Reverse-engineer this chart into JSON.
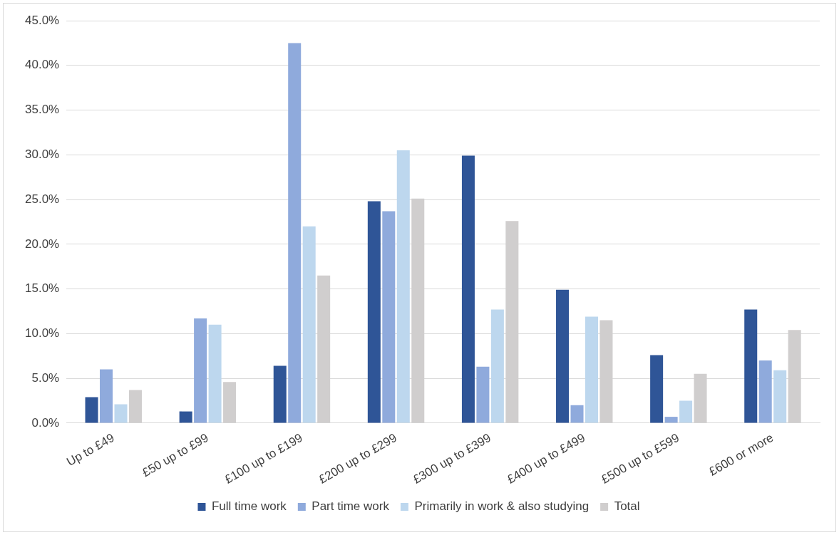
{
  "chart_data": {
    "type": "bar",
    "categories": [
      "Up to £49",
      "£50 up to £99",
      "£100 up to £199",
      "£200 up to £299",
      "£300 up to £399",
      "£400 up to £499",
      "£500 up to £599",
      "£600 or more"
    ],
    "series": [
      {
        "name": "Full time work",
        "color": "#2f5597",
        "values": [
          2.9,
          1.3,
          6.4,
          24.8,
          29.9,
          14.9,
          7.6,
          12.7
        ]
      },
      {
        "name": "Part time work",
        "color": "#8faadc",
        "values": [
          6.0,
          11.7,
          42.5,
          23.7,
          6.3,
          2.0,
          0.7,
          7.0
        ]
      },
      {
        "name": "Primarily in work & also studying",
        "color": "#bdd7ee",
        "values": [
          2.1,
          11.0,
          22.0,
          30.5,
          12.7,
          11.9,
          2.5,
          5.9
        ]
      },
      {
        "name": "Total",
        "color": "#d0cece",
        "values": [
          3.7,
          4.6,
          16.5,
          25.1,
          22.6,
          11.5,
          5.5,
          10.4
        ]
      }
    ],
    "ylim": [
      0,
      45
    ],
    "yticks": [
      {
        "value": 0,
        "label": "0.0%"
      },
      {
        "value": 5,
        "label": "5.0%"
      },
      {
        "value": 10,
        "label": "10.0%"
      },
      {
        "value": 15,
        "label": "15.0%"
      },
      {
        "value": 20,
        "label": "20.0%"
      },
      {
        "value": 25,
        "label": "25.0%"
      },
      {
        "value": 30,
        "label": "30.0%"
      },
      {
        "value": 35,
        "label": "35.0%"
      },
      {
        "value": 40,
        "label": "40.0%"
      },
      {
        "value": 45,
        "label": "45.0%"
      }
    ],
    "grid": "y",
    "legend": "bottom"
  }
}
